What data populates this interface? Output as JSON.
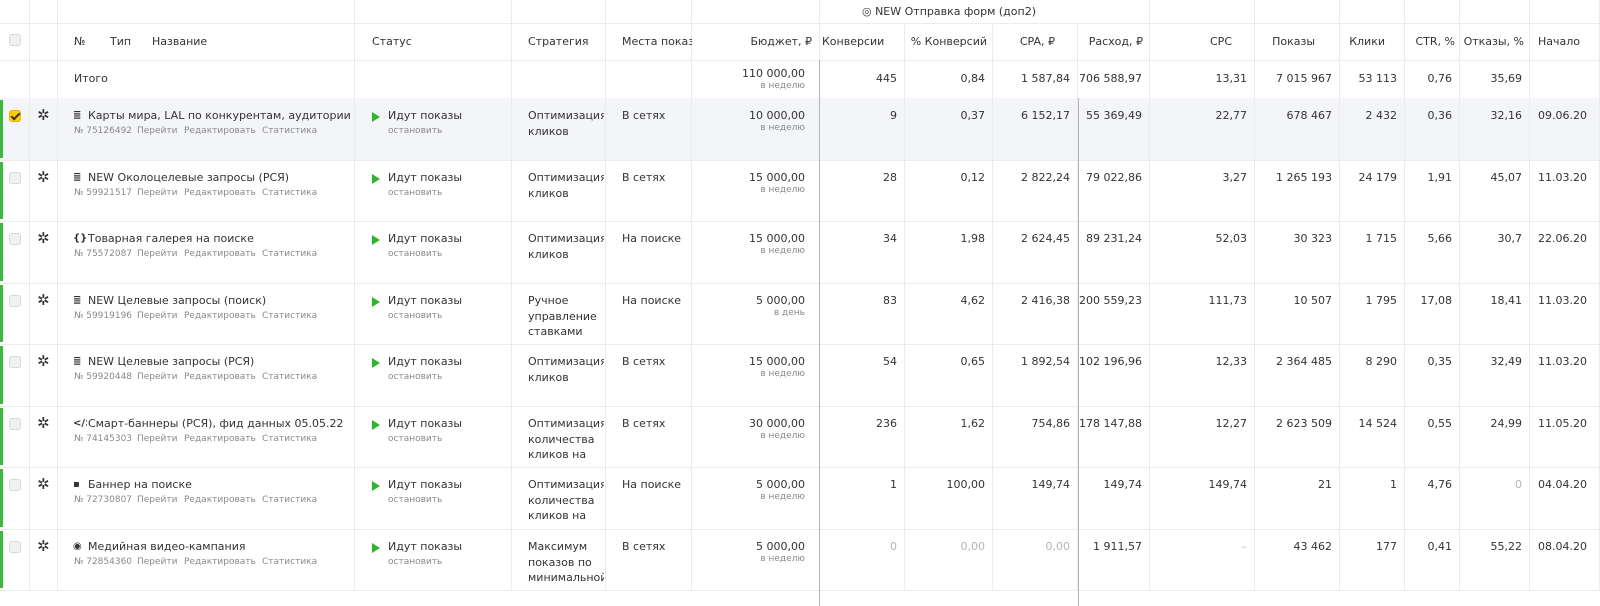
{
  "group_header": "◎ NEW Отправка форм (доп2)",
  "columns": {
    "num": "№",
    "type": "Тип",
    "name": "Название",
    "status": "Статус",
    "strategy": "Стратегия",
    "places": "Места показ",
    "budget": "Бюджет, ₽",
    "conversions": "Конверсии",
    "conv_pct": "% Конверсий",
    "cpa": "CPA, ₽",
    "spend": "Расход, ₽",
    "cpc": "CPC",
    "impressions": "Показы",
    "clicks": "Клики",
    "ctr": "CTR, %",
    "bounce": "Отказы, %",
    "start": "Начало"
  },
  "total": {
    "label": "Итого",
    "budget": "110 000,00",
    "budget_period": "в неделю",
    "conversions": "445",
    "conv_pct": "0,84",
    "cpa": "1 587,84",
    "spend": "706 588,97",
    "cpc": "13,31",
    "impressions": "7 015 967",
    "clicks": "53 113",
    "ctr": "0,76",
    "bounce": "35,69"
  },
  "links": {
    "go": "Перейти",
    "edit": "Редактировать",
    "stats": "Статистика",
    "stop": "остановить"
  },
  "rows": [
    {
      "icon": "≣",
      "selected": true,
      "name": "Карты мира, LAL по конкурентам, аудитории для д",
      "id": "№ 75126492",
      "status": "Идут показы",
      "strategy": [
        "Оптимизация",
        "кликов"
      ],
      "places": "В сетях",
      "budget": "10 000,00",
      "period": "в неделю",
      "conversions": "9",
      "conv_pct": "0,37",
      "cpa": "6 152,17",
      "spend": "55 369,49",
      "cpc": "22,77",
      "impressions": "678 467",
      "clicks": "2 432",
      "ctr": "0,36",
      "bounce": "32,16",
      "start": "09.06.20",
      "muted": false
    },
    {
      "icon": "≣",
      "selected": false,
      "name": "NEW Околоцелевые запросы (РСЯ)",
      "id": "№ 59921517",
      "status": "Идут показы",
      "strategy": [
        "Оптимизация",
        "кликов"
      ],
      "places": "В сетях",
      "budget": "15 000,00",
      "period": "в неделю",
      "conversions": "28",
      "conv_pct": "0,12",
      "cpa": "2 822,24",
      "spend": "79 022,86",
      "cpc": "3,27",
      "impressions": "1 265 193",
      "clicks": "24 179",
      "ctr": "1,91",
      "bounce": "45,07",
      "start": "11.03.20",
      "muted": false
    },
    {
      "icon": "{}",
      "selected": false,
      "name": "Товарная галерея на поиске",
      "id": "№ 75572087",
      "status": "Идут показы",
      "strategy": [
        "Оптимизация",
        "кликов"
      ],
      "places": "На поиске",
      "budget": "15 000,00",
      "period": "в неделю",
      "conversions": "34",
      "conv_pct": "1,98",
      "cpa": "2 624,45",
      "spend": "89 231,24",
      "cpc": "52,03",
      "impressions": "30 323",
      "clicks": "1 715",
      "ctr": "5,66",
      "bounce": "30,7",
      "start": "22.06.20",
      "muted": false
    },
    {
      "icon": "≣",
      "selected": false,
      "name": "NEW Целевые запросы (поиск)",
      "id": "№ 59919196",
      "status": "Идут показы",
      "strategy": [
        "Ручное",
        "управление",
        "ставками"
      ],
      "places": "На поиске",
      "budget": "5 000,00",
      "period": "в день",
      "conversions": "83",
      "conv_pct": "4,62",
      "cpa": "2 416,38",
      "spend": "200 559,23",
      "cpc": "111,73",
      "impressions": "10 507",
      "clicks": "1 795",
      "ctr": "17,08",
      "bounce": "18,41",
      "start": "11.03.20",
      "muted": false
    },
    {
      "icon": "≣",
      "selected": false,
      "name": "NEW Целевые запросы (РСЯ)",
      "id": "№ 59920448",
      "status": "Идут показы",
      "strategy": [
        "Оптимизация",
        "кликов"
      ],
      "places": "В сетях",
      "budget": "15 000,00",
      "period": "в неделю",
      "conversions": "54",
      "conv_pct": "0,65",
      "cpa": "1 892,54",
      "spend": "102 196,96",
      "cpc": "12,33",
      "impressions": "2 364 485",
      "clicks": "8 290",
      "ctr": "0,35",
      "bounce": "32,49",
      "start": "11.03.20",
      "muted": false
    },
    {
      "icon": "</>",
      "selected": false,
      "name": "Смарт-баннеры (РСЯ), фид данных 05.05.22",
      "id": "№ 74145303",
      "status": "Идут показы",
      "strategy": [
        "Оптимизация",
        "количества",
        "кликов на"
      ],
      "places": "В сетях",
      "budget": "30 000,00",
      "period": "в неделю",
      "conversions": "236",
      "conv_pct": "1,62",
      "cpa": "754,86",
      "spend": "178 147,88",
      "cpc": "12,27",
      "impressions": "2 623 509",
      "clicks": "14 524",
      "ctr": "0,55",
      "bounce": "24,99",
      "start": "11.05.20",
      "muted": false
    },
    {
      "icon": "▪",
      "selected": false,
      "name": "Баннер на поиске",
      "id": "№ 72730807",
      "status": "Идут показы",
      "strategy": [
        "Оптимизация",
        "количества",
        "кликов на"
      ],
      "places": "На поиске",
      "budget": "5 000,00",
      "period": "в неделю",
      "conversions": "1",
      "conv_pct": "100,00",
      "cpa": "149,74",
      "spend": "149,74",
      "cpc": "149,74",
      "impressions": "21",
      "clicks": "1",
      "ctr": "4,76",
      "bounce": "0",
      "start": "04.04.20",
      "muted_bounce": true
    },
    {
      "icon": "◉",
      "selected": false,
      "name": "Медийная видео-кампания",
      "id": "№ 72854360",
      "status": "Идут показы",
      "strategy": [
        "Максимум",
        "показов по",
        "минимальной"
      ],
      "places": "В сетях",
      "budget": "5 000,00",
      "period": "в неделю",
      "conversions": "0",
      "conv_pct": "0,00",
      "cpa": "0,00",
      "spend": "1 911,57",
      "cpc": "–",
      "impressions": "43 462",
      "clicks": "177",
      "ctr": "0,41",
      "bounce": "55,22",
      "start": "08.04.20",
      "muted_conv": true
    }
  ]
}
